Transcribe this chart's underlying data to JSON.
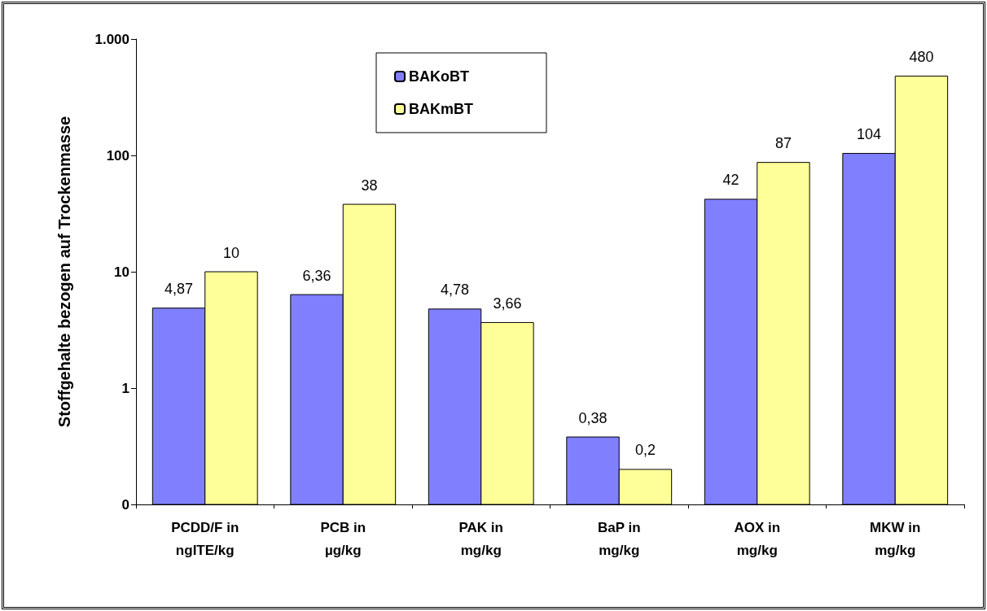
{
  "chart_data": {
    "type": "bar",
    "ylabel": "Stoffgehalte bezogen auf Trockenmasse",
    "categories": [
      "PCDD/F in\nngITE/kg",
      "PCB in\nµg/kg",
      "PAK in\nmg/kg",
      "BaP in\nmg/kg",
      "AOX in\nmg/kg",
      "MKW in\nmg/kg"
    ],
    "series": [
      {
        "name": "BAKoBT",
        "color": "#8080ff",
        "values": [
          4.87,
          6.36,
          4.78,
          0.38,
          42,
          104
        ],
        "value_labels": [
          "4,87",
          "6,36",
          "4,78",
          "0,38",
          "42",
          "104"
        ]
      },
      {
        "name": "BAKmBT",
        "color": "#ffff99",
        "values": [
          10,
          38,
          3.66,
          0.2,
          87,
          480
        ],
        "value_labels": [
          "10",
          "38",
          "3,66",
          "0,2",
          "87",
          "480"
        ]
      }
    ],
    "log": "y",
    "ylim": [
      0.1,
      1000
    ],
    "yticks": [
      {
        "value": 0.1,
        "label": "0"
      },
      1,
      10,
      100,
      {
        "value": 1000,
        "label": "1.000"
      }
    ],
    "grid": false,
    "legend": "top"
  }
}
